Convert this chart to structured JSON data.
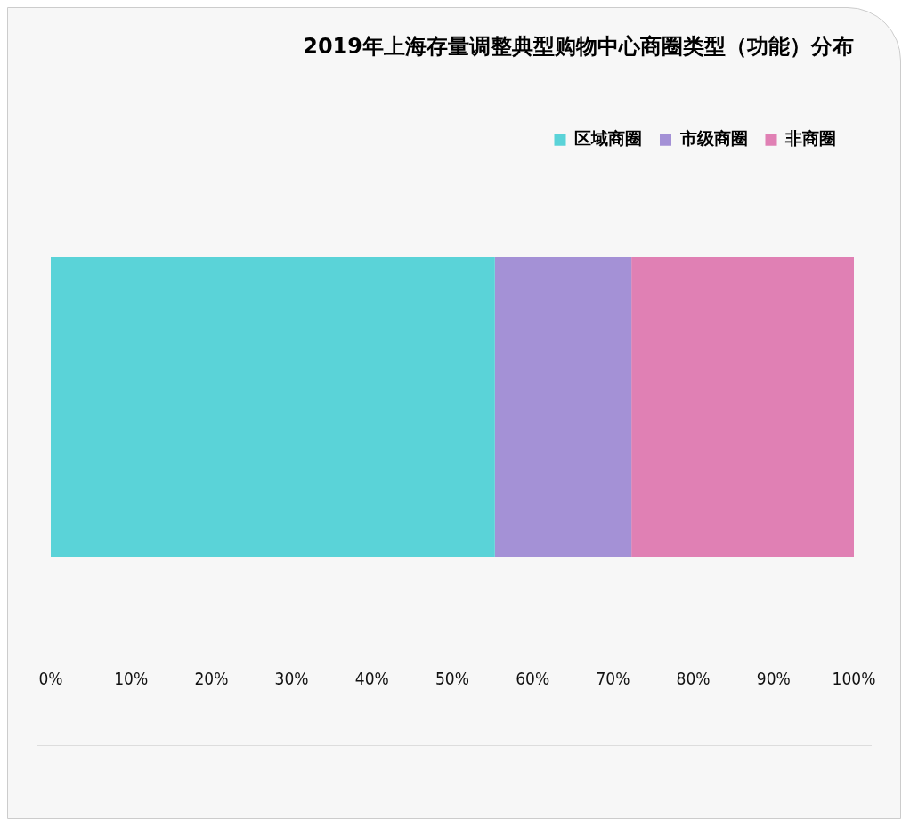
{
  "chart_data": {
    "type": "bar",
    "orientation": "horizontal",
    "stacked": true,
    "title": "2019年上海存量调整典型购物中心商圈类型（功能）分布",
    "categories": [
      null
    ],
    "series": [
      {
        "name": "区域商圈",
        "color": "#5ad3d8",
        "values": [
          55.3
        ]
      },
      {
        "name": "市级商圈",
        "color": "#a491d6",
        "values": [
          17.0
        ]
      },
      {
        "name": "非商圈",
        "color": "#e080b4",
        "values": [
          27.7
        ]
      }
    ],
    "xlim": [
      0,
      100
    ],
    "xticks": [
      {
        "value": 0,
        "label": "0%"
      },
      {
        "value": 10,
        "label": "10%"
      },
      {
        "value": 20,
        "label": "20%"
      },
      {
        "value": 30,
        "label": "30%"
      },
      {
        "value": 40,
        "label": "40%"
      },
      {
        "value": 50,
        "label": "50%"
      },
      {
        "value": 60,
        "label": "60%"
      },
      {
        "value": 70,
        "label": "70%"
      },
      {
        "value": 80,
        "label": "80%"
      },
      {
        "value": 90,
        "label": "90%"
      },
      {
        "value": 100,
        "label": "100%"
      }
    ],
    "grid": false,
    "legend": "top right"
  }
}
